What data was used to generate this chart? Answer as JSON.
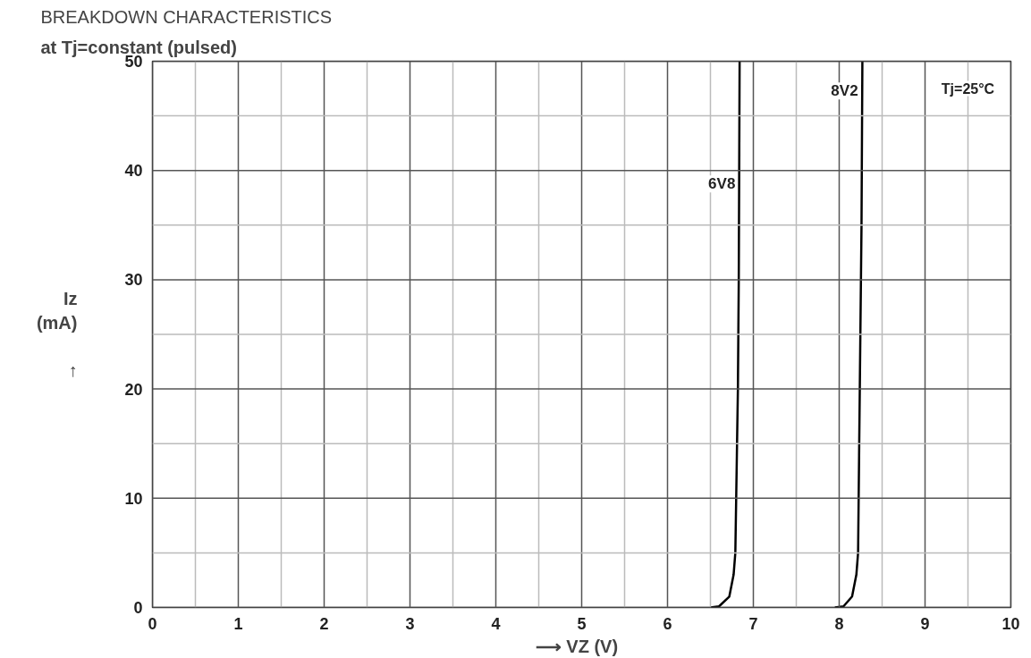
{
  "chart_data": {
    "type": "line",
    "title": "BREAKDOWN CHARACTERISTICS",
    "subtitle": "at Tj=constant (pulsed)",
    "xlabel": "⟶   VZ (V)",
    "ylabel": "Iz\n(mA)\n\n↑",
    "series": [
      {
        "name": "6V8",
        "color": "#000000",
        "x": [
          6.5,
          6.6,
          6.72,
          6.77,
          6.79,
          6.82,
          6.83,
          6.84
        ],
        "values": [
          0,
          0.1,
          1,
          3,
          5,
          20,
          30,
          50
        ]
      },
      {
        "name": "8V2",
        "color": "#000000",
        "x": [
          7.95,
          8.05,
          8.15,
          8.2,
          8.22,
          8.24,
          8.26,
          8.27
        ],
        "values": [
          0,
          0.1,
          1,
          3,
          5,
          20,
          35,
          50
        ]
      }
    ],
    "annotations": [
      "Tj=25°C"
    ],
    "xlim": [
      0,
      10
    ],
    "ylim": [
      0,
      50
    ],
    "xticks": [
      0,
      {
        "value": 0.5,
        "label": null
      },
      1,
      {
        "value": 1.5,
        "label": null
      },
      2,
      {
        "value": 2.5,
        "label": null
      },
      3,
      {
        "value": 3.5,
        "label": null
      },
      4,
      {
        "value": 4.5,
        "label": null
      },
      5,
      {
        "value": 5.5,
        "label": null
      },
      6,
      {
        "value": 6.5,
        "label": null
      },
      7,
      {
        "value": 7.5,
        "label": null
      },
      8,
      {
        "value": 8.5,
        "label": null
      },
      9,
      {
        "value": 9.5,
        "label": null
      },
      10
    ],
    "yticks": [
      0,
      {
        "value": 5,
        "label": null
      },
      10,
      {
        "value": 15,
        "label": null
      },
      20,
      {
        "value": 25,
        "label": null
      },
      30,
      {
        "value": 35,
        "label": null
      },
      40,
      {
        "value": 45,
        "label": null
      },
      50
    ],
    "grid": true,
    "marker": "none",
    "line_style": "solid"
  }
}
